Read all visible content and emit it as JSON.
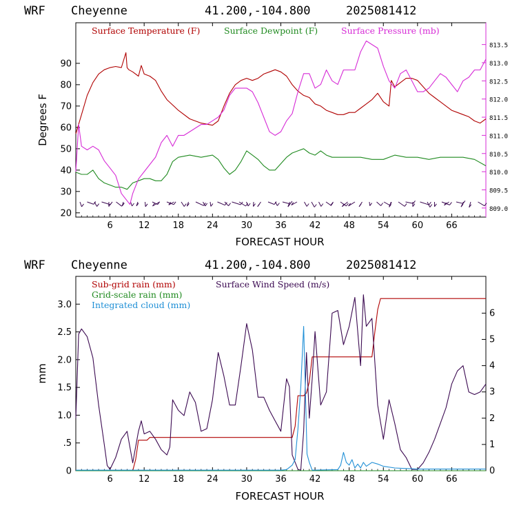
{
  "charts": [
    {
      "header": {
        "model": "WRF",
        "station": "Cheyenne",
        "coords": "41.200,-104.800",
        "date": "2025081412"
      },
      "xlabel": "FORECAST HOUR",
      "ylabel": "Degrees F",
      "legend": [
        {
          "text": "Surface Temperature (F)",
          "color": "#b00000"
        },
        {
          "text": "Surface Dewpoint (F)",
          "color": "#1f8a1f"
        },
        {
          "text": "Surface Pressure (mb)",
          "color": "#d62ad6"
        }
      ]
    },
    {
      "header": {
        "model": "WRF",
        "station": "Cheyenne",
        "coords": "41.200,-104.800",
        "date": "2025081412"
      },
      "xlabel": "FORECAST HOUR",
      "ylabel": "mm",
      "legend": [
        {
          "text": "Sub-grid rain (mm)",
          "color": "#b00000"
        },
        {
          "text": "Surface Wind Speed (m/s)",
          "color": "#3a0850"
        },
        {
          "text": "Grid-scale rain (mm)",
          "color": "#1f8a1f"
        },
        {
          "text": "Integrated cloud (mm)",
          "color": "#1f8fd6"
        }
      ]
    }
  ],
  "chart_data": [
    {
      "type": "line",
      "title": "WRF Cheyenne 41.200,-104.800 2025081412",
      "xlabel": "FORECAST HOUR",
      "ylabel": "Degrees F",
      "xlim": [
        0,
        72
      ],
      "ylim": [
        18,
        109
      ],
      "x_ticks": [
        6,
        12,
        18,
        24,
        30,
        36,
        42,
        48,
        54,
        60,
        66
      ],
      "y_ticks": [
        20,
        30,
        40,
        50,
        60,
        70,
        80,
        90
      ],
      "y2lim": [
        808.75,
        814.1
      ],
      "y2_ticks": [
        "809.0",
        "809.5",
        "810.0",
        "810.5",
        "811.0",
        "811.5",
        "812.0",
        "812.5",
        "813.0",
        "813.5"
      ],
      "series": [
        {
          "name": "Surface Temperature (F)",
          "axis": "left",
          "color": "#b00000",
          "x": [
            0,
            1,
            2,
            3,
            4,
            5,
            6,
            7,
            8,
            8.8,
            9,
            9.3,
            10,
            11,
            11.5,
            12,
            13,
            14,
            15,
            16,
            18,
            20,
            22,
            24,
            25,
            26,
            27,
            28,
            29,
            30,
            31,
            32,
            33,
            34,
            35,
            36,
            37,
            38,
            39,
            40,
            41,
            42,
            43,
            44,
            45,
            46,
            47,
            48,
            49,
            50,
            51,
            52,
            53,
            54,
            55,
            55.4,
            56,
            57,
            58,
            59,
            60,
            61,
            62,
            63,
            64,
            65,
            66,
            67,
            68,
            69,
            70,
            71,
            72
          ],
          "y": [
            57,
            66,
            75,
            81,
            85,
            87,
            88,
            88.5,
            88,
            95,
            88,
            87,
            86,
            84,
            89,
            85,
            84,
            82,
            77,
            73,
            68,
            64,
            62,
            61,
            63,
            70,
            76,
            80,
            82,
            83,
            82,
            83,
            85,
            86,
            87,
            86,
            84,
            80,
            77,
            75,
            74,
            71,
            70,
            68,
            67,
            66,
            66,
            67,
            67,
            69,
            71,
            73,
            76,
            72,
            70,
            82,
            79,
            81,
            83,
            83,
            82,
            79,
            76,
            74,
            72,
            70,
            68,
            67,
            66,
            65,
            63,
            62,
            64
          ]
        },
        {
          "name": "Surface Dewpoint (F)",
          "axis": "left",
          "color": "#1f8a1f",
          "x": [
            0,
            1,
            2,
            3,
            4,
            5,
            6,
            7,
            8,
            9,
            10,
            11,
            12,
            13,
            14,
            15,
            16,
            17,
            18,
            20,
            22,
            24,
            25,
            26,
            27,
            28,
            29,
            30,
            31,
            32,
            33,
            34,
            35,
            36,
            37,
            38,
            39,
            40,
            41,
            42,
            43,
            44,
            45,
            46,
            48,
            50,
            52,
            54,
            56,
            58,
            60,
            62,
            64,
            66,
            68,
            70,
            72
          ],
          "y": [
            39,
            38,
            38,
            40,
            36,
            34,
            33,
            32,
            32,
            31,
            34,
            35,
            36,
            36,
            35,
            35,
            38,
            44,
            46,
            47,
            46,
            47,
            45,
            41,
            38,
            40,
            44,
            49,
            47,
            45,
            42,
            40,
            40,
            43,
            46,
            48,
            49,
            50,
            48,
            47,
            49,
            47,
            46,
            46,
            46,
            46,
            45,
            45,
            47,
            46,
            46,
            45,
            46,
            46,
            46,
            45,
            42
          ]
        },
        {
          "name": "Surface Pressure (mb)",
          "axis": "right",
          "color": "#d62ad6",
          "x": [
            0,
            0.5,
            1,
            2,
            3,
            4,
            5,
            6,
            7,
            8,
            9,
            9.5,
            10,
            11,
            12,
            13,
            14,
            15,
            16,
            17,
            18,
            19,
            20,
            21,
            22,
            23,
            24,
            25,
            26,
            27,
            28,
            29,
            30,
            31,
            32,
            33,
            34,
            35,
            36,
            37,
            38,
            39,
            40,
            41,
            42,
            43,
            44,
            45,
            46,
            47,
            48,
            49,
            50,
            51,
            52,
            53,
            54,
            55,
            56,
            57,
            58,
            59,
            60,
            61,
            62,
            63,
            64,
            65,
            66,
            67,
            68,
            69,
            70,
            71,
            72
          ],
          "y": [
            810.0,
            811.3,
            810.7,
            810.6,
            810.7,
            810.6,
            810.3,
            810.1,
            809.9,
            809.4,
            809.2,
            809.1,
            809.4,
            809.8,
            810.0,
            810.2,
            810.4,
            810.8,
            811.0,
            810.7,
            811.0,
            811.0,
            811.1,
            811.2,
            811.3,
            811.3,
            811.4,
            811.5,
            811.7,
            812.1,
            812.3,
            812.3,
            812.3,
            812.2,
            811.9,
            811.5,
            811.1,
            811.0,
            811.1,
            811.4,
            811.6,
            812.2,
            812.7,
            812.7,
            812.3,
            812.4,
            812.8,
            812.5,
            812.4,
            812.8,
            812.8,
            812.8,
            813.3,
            813.6,
            813.5,
            813.4,
            812.9,
            812.5,
            812.3,
            812.7,
            812.8,
            812.5,
            812.2,
            812.2,
            812.3,
            812.5,
            812.7,
            812.6,
            812.4,
            812.2,
            812.5,
            812.6,
            812.8,
            812.8,
            813.1
          ]
        }
      ],
      "wind_barbs": "row of wind barbs along the bottom of the panel"
    },
    {
      "type": "line",
      "title": "WRF Cheyenne 41.200,-104.800 2025081412",
      "xlabel": "FORECAST HOUR",
      "ylabel": "mm",
      "xlim": [
        0,
        72
      ],
      "ylim": [
        0,
        3.5
      ],
      "x_ticks": [
        6,
        12,
        18,
        24,
        30,
        36,
        42,
        48,
        54,
        60,
        66
      ],
      "y_ticks": [
        0,
        0.5,
        1.0,
        1.5,
        2.0,
        2.5,
        3.0
      ],
      "y_tick_labels": [
        "0",
        ".5",
        "1.0",
        "1.5",
        "2.0",
        "2.5",
        "3.0"
      ],
      "y2lim": [
        0,
        7.4
      ],
      "y2_ticks": [
        0,
        1,
        2,
        3,
        4,
        5,
        6
      ],
      "series": [
        {
          "name": "Sub-grid rain (mm)",
          "axis": "left",
          "color": "#b00000",
          "x": [
            0,
            10,
            10.5,
            11,
            12.5,
            13,
            38,
            38.5,
            39,
            40,
            40.5,
            41,
            41.5,
            52,
            52.5,
            53,
            53.5,
            72
          ],
          "y": [
            0,
            0,
            0.2,
            0.55,
            0.55,
            0.6,
            0.6,
            0.8,
            1.35,
            1.35,
            1.4,
            1.6,
            2.05,
            2.05,
            2.5,
            2.9,
            3.1,
            3.1
          ]
        },
        {
          "name": "Surface Wind Speed (m/s)",
          "axis": "right",
          "color": "#3a0850",
          "x": [
            0,
            0.5,
            1,
            2,
            3,
            4,
            5,
            5.5,
            6,
            7,
            8,
            9,
            10,
            11,
            11.5,
            12,
            13,
            14,
            15,
            16,
            16.5,
            17,
            18,
            19,
            20,
            21,
            22,
            23,
            24,
            25,
            26,
            27,
            28,
            29,
            30,
            31,
            32,
            33,
            34,
            35,
            36,
            37,
            37.5,
            38,
            39,
            39.5,
            40,
            40.5,
            41,
            41.5,
            42,
            43,
            44,
            45,
            46,
            47,
            48,
            49,
            50,
            50.5,
            51,
            52,
            53,
            54,
            55,
            56,
            57,
            58,
            59,
            60,
            61,
            62,
            63,
            64,
            65,
            66,
            67,
            68,
            69,
            70,
            71,
            72
          ],
          "y": [
            2,
            5.2,
            5.4,
            5.1,
            4.3,
            2.5,
            1.0,
            0.2,
            0.05,
            0.5,
            1.2,
            1.5,
            0.3,
            1.5,
            1.9,
            1.4,
            1.5,
            1.2,
            0.8,
            0.6,
            0.9,
            2.7,
            2.3,
            2.1,
            3.0,
            2.6,
            1.5,
            1.6,
            2.7,
            4.5,
            3.6,
            2.5,
            2.5,
            4.0,
            5.6,
            4.6,
            2.8,
            2.8,
            2.3,
            1.9,
            1.5,
            3.5,
            3.2,
            0.6,
            0.05,
            0.02,
            1.5,
            4.5,
            2.0,
            3.5,
            5.3,
            2.5,
            3.0,
            6.0,
            6.1,
            4.8,
            5.5,
            6.6,
            4.0,
            6.7,
            5.5,
            5.8,
            2.5,
            1.2,
            2.7,
            1.8,
            0.8,
            0.5,
            0.05,
            0.05,
            0.3,
            0.7,
            1.2,
            1.8,
            2.4,
            3.3,
            3.8,
            4.0,
            3.0,
            2.9,
            3.0,
            3.3
          ]
        },
        {
          "name": "Grid-scale rain (mm)",
          "axis": "left",
          "color": "#1f8a1f",
          "x": [
            0,
            72
          ],
          "y": [
            0,
            0
          ]
        },
        {
          "name": "Integrated cloud (mm)",
          "axis": "left",
          "color": "#1f8fd6",
          "x": [
            0,
            36,
            37,
            38,
            38.5,
            39,
            39.5,
            40,
            40.3,
            40.6,
            41,
            41.5,
            46,
            46.5,
            47,
            47.5,
            48,
            48.5,
            49,
            49.5,
            50,
            50.5,
            51,
            52,
            53,
            54,
            56,
            58,
            60,
            62,
            64,
            66,
            68,
            70,
            72
          ],
          "y": [
            0.01,
            0.01,
            0.02,
            0.1,
            0.2,
            0.75,
            1.5,
            2.6,
            1.5,
            0.3,
            0.15,
            0.01,
            0.02,
            0.1,
            0.33,
            0.15,
            0.1,
            0.2,
            0.05,
            0.12,
            0.05,
            0.15,
            0.08,
            0.15,
            0.12,
            0.08,
            0.05,
            0.04,
            0.03,
            0.03,
            0.03,
            0.03,
            0.03,
            0.03,
            0.03
          ]
        }
      ]
    }
  ]
}
